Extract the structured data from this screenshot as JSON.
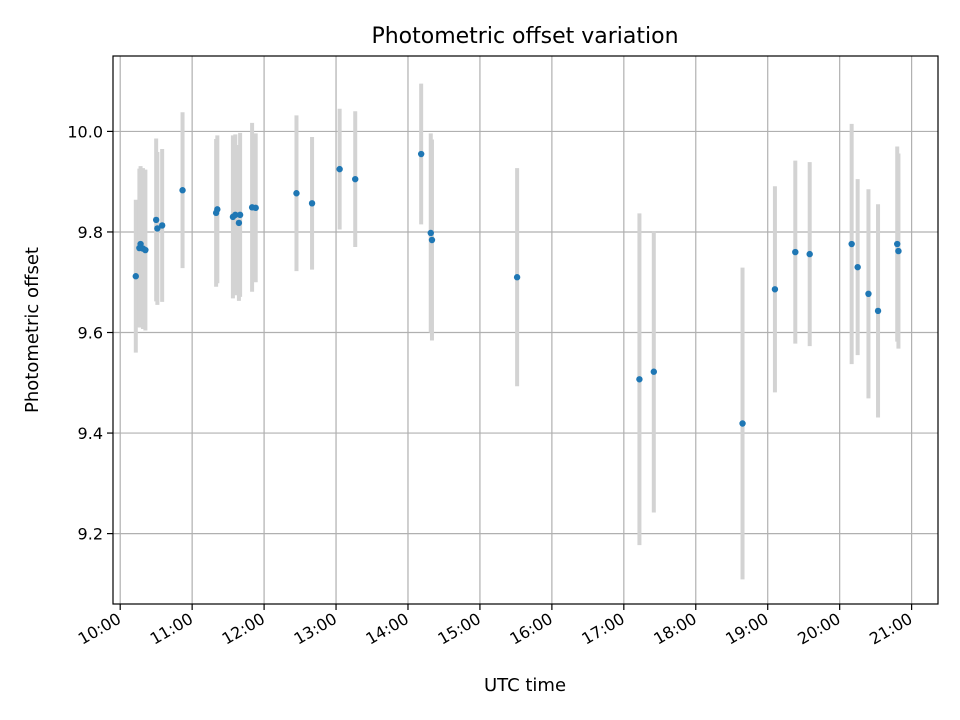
{
  "chart_data": {
    "type": "scatter",
    "title": "Photometric offset variation",
    "xlabel": "UTC time",
    "ylabel": "Photometric offset",
    "xlim": [
      "09:54",
      "21:22"
    ],
    "ylim": [
      9.06,
      10.15
    ],
    "x_ticks": [
      "10:00",
      "11:00",
      "12:00",
      "13:00",
      "14:00",
      "15:00",
      "16:00",
      "17:00",
      "18:00",
      "19:00",
      "20:00",
      "21:00"
    ],
    "y_ticks": [
      9.2,
      9.4,
      9.6,
      9.8,
      10.0
    ],
    "y_tick_labels": [
      "9.2",
      "9.4",
      "9.6",
      "9.8",
      "10.0"
    ],
    "grid": true,
    "marker_color": "#1f77b4",
    "errorbar_color": "#d3d3d3",
    "points": [
      {
        "x": "10:13",
        "y": 9.712,
        "err": 0.152
      },
      {
        "x": "10:16",
        "y": 9.768,
        "err": 0.158
      },
      {
        "x": "10:17",
        "y": 9.776,
        "err": 0.155
      },
      {
        "x": "10:19",
        "y": 9.767,
        "err": 0.16
      },
      {
        "x": "10:21",
        "y": 9.764,
        "err": 0.16
      },
      {
        "x": "10:30",
        "y": 9.824,
        "err": 0.162
      },
      {
        "x": "10:31",
        "y": 9.807,
        "err": 0.152
      },
      {
        "x": "10:35",
        "y": 9.813,
        "err": 0.152
      },
      {
        "x": "10:52",
        "y": 9.883,
        "err": 0.155
      },
      {
        "x": "11:20",
        "y": 9.838,
        "err": 0.147
      },
      {
        "x": "11:21",
        "y": 9.845,
        "err": 0.147
      },
      {
        "x": "11:34",
        "y": 9.83,
        "err": 0.162
      },
      {
        "x": "11:36",
        "y": 9.834,
        "err": 0.16
      },
      {
        "x": "11:39",
        "y": 9.818,
        "err": 0.155
      },
      {
        "x": "11:40",
        "y": 9.834,
        "err": 0.163
      },
      {
        "x": "11:50",
        "y": 9.849,
        "err": 0.168
      },
      {
        "x": "11:53",
        "y": 9.848,
        "err": 0.148
      },
      {
        "x": "12:27",
        "y": 9.877,
        "err": 0.155
      },
      {
        "x": "12:40",
        "y": 9.857,
        "err": 0.132
      },
      {
        "x": "13:03",
        "y": 9.925,
        "err": 0.12
      },
      {
        "x": "13:16",
        "y": 9.905,
        "err": 0.135
      },
      {
        "x": "14:11",
        "y": 9.955,
        "err": 0.14
      },
      {
        "x": "14:19",
        "y": 9.798,
        "err": 0.198
      },
      {
        "x": "14:20",
        "y": 9.784,
        "err": 0.2
      },
      {
        "x": "15:31",
        "y": 9.71,
        "err": 0.217
      },
      {
        "x": "17:13",
        "y": 9.507,
        "err": 0.33
      },
      {
        "x": "17:25",
        "y": 9.522,
        "err": 0.28
      },
      {
        "x": "18:39",
        "y": 9.419,
        "err": 0.31
      },
      {
        "x": "19:06",
        "y": 9.686,
        "err": 0.205
      },
      {
        "x": "19:23",
        "y": 9.76,
        "err": 0.182
      },
      {
        "x": "19:35",
        "y": 9.756,
        "err": 0.183
      },
      {
        "x": "20:10",
        "y": 9.776,
        "err": 0.239
      },
      {
        "x": "20:15",
        "y": 9.73,
        "err": 0.175
      },
      {
        "x": "20:24",
        "y": 9.677,
        "err": 0.208
      },
      {
        "x": "20:32",
        "y": 9.643,
        "err": 0.212
      },
      {
        "x": "20:48",
        "y": 9.776,
        "err": 0.194
      },
      {
        "x": "20:49",
        "y": 9.762,
        "err": 0.194
      }
    ]
  }
}
